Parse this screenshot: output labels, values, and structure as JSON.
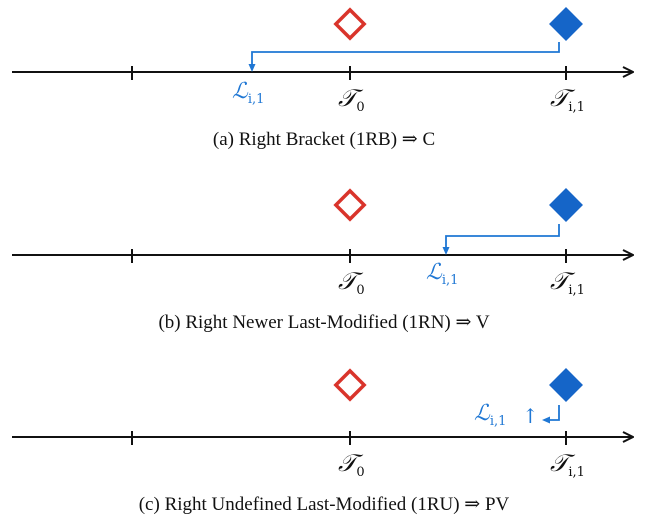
{
  "colors": {
    "axis": "#111111",
    "t0_marker": "#d9342b",
    "ti1_marker": "#1565c8",
    "bracket": "#1f77d4"
  },
  "symbols": {
    "t0_main": "𝒯",
    "t0_sub": "0",
    "ti1_main": "𝒯",
    "ti1_sub": "i,1",
    "l_main": "ℒ",
    "l_sub": "i,1",
    "arrow_up": "↑"
  },
  "panels": {
    "a": {
      "caption": "(a) Right Bracket (1RB) ⇒ C"
    },
    "b": {
      "caption": "(b) Right Newer Last-Modified (1RN) ⇒ V"
    },
    "c": {
      "caption": "(c) Right Undefined Last-Modified (1RU) ⇒ PV"
    }
  }
}
